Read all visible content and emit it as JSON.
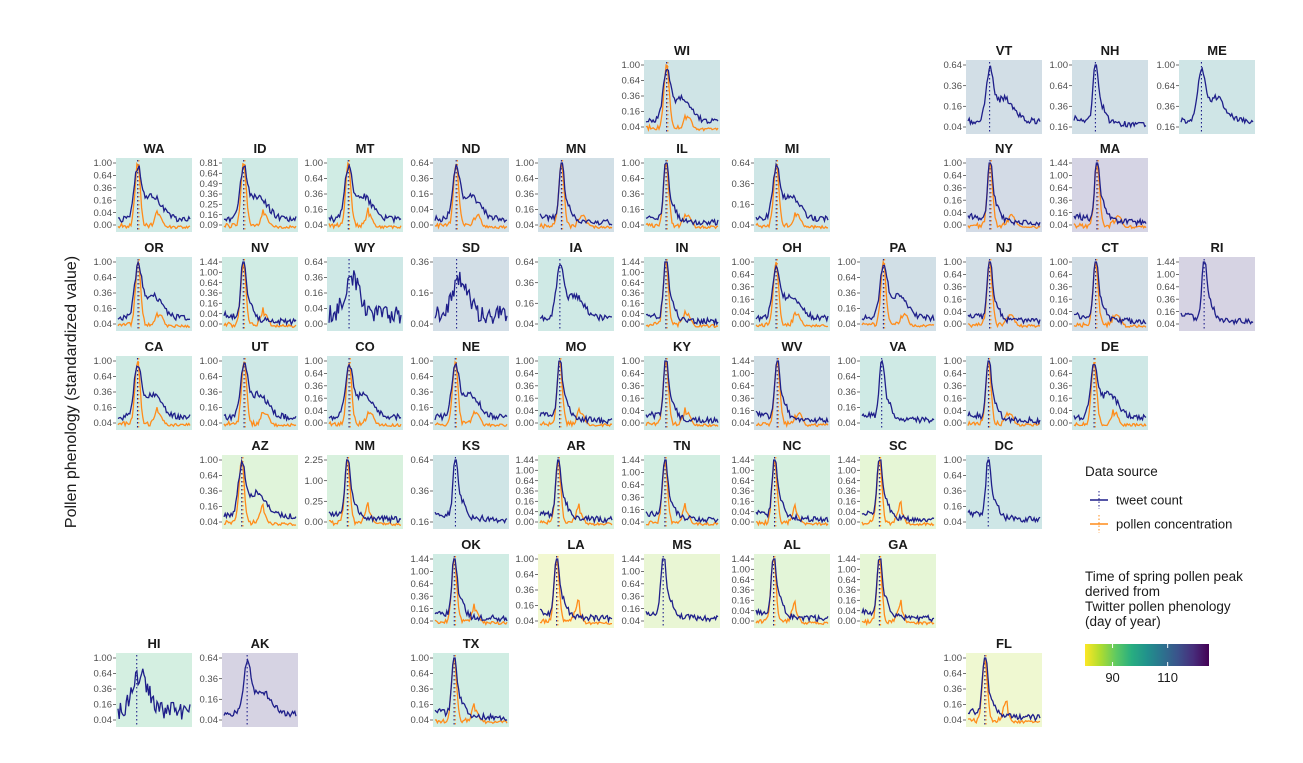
{
  "chart_data": {
    "type": "line",
    "ylabel": "Pollen phenology (standardized value)",
    "colors": {
      "tweet": "#1f1f8a",
      "pollen": "#ff8c1a"
    },
    "legend": {
      "title": "Data source",
      "items": [
        {
          "label": "tweet count",
          "color": "#1f1f8a"
        },
        {
          "label": "pollen concentration",
          "color": "#ff8c1a"
        }
      ]
    },
    "colorbar": {
      "title_lines": [
        "Time of spring pollen peak",
        "derived from",
        "Twitter pollen phenology",
        "(day of year)"
      ],
      "ticks": [
        90,
        110
      ],
      "range": [
        80,
        125
      ],
      "palette": [
        "#fde725",
        "#addc30",
        "#5ec962",
        "#28ae80",
        "#21918c",
        "#2c728e",
        "#3b528b",
        "#472d7b",
        "#440154"
      ]
    },
    "panels": [
      {
        "state": "WI",
        "col": 5,
        "row": 0,
        "ticks": [
          "1.00",
          "0.64",
          "0.36",
          "0.16",
          "0.04"
        ],
        "peak": 105,
        "pollen": true,
        "shape": "broad"
      },
      {
        "state": "VT",
        "col": 8,
        "row": 0,
        "ticks": [
          "0.64",
          "0.36",
          "0.16",
          "0.04"
        ],
        "peak": 110,
        "pollen": false,
        "shape": "broad"
      },
      {
        "state": "NH",
        "col": 9,
        "row": 0,
        "ticks": [
          "1.00",
          "0.64",
          "0.36",
          "0.16"
        ],
        "peak": 109,
        "pollen": false,
        "shape": "sharp"
      },
      {
        "state": "ME",
        "col": 10,
        "row": 0,
        "ticks": [
          "1.00",
          "0.64",
          "0.36",
          "0.16"
        ],
        "peak": 104,
        "pollen": false,
        "shape": "broad"
      },
      {
        "state": "WA",
        "col": 0,
        "row": 1,
        "ticks": [
          "1.00",
          "0.64",
          "0.36",
          "0.16",
          "0.04",
          "0.00"
        ],
        "peak": 100,
        "pollen": true,
        "shape": "broad"
      },
      {
        "state": "ID",
        "col": 1,
        "row": 1,
        "ticks": [
          "0.81",
          "0.64",
          "0.49",
          "0.36",
          "0.25",
          "0.16",
          "0.09"
        ],
        "peak": 100,
        "pollen": true,
        "shape": "broad"
      },
      {
        "state": "MT",
        "col": 2,
        "row": 1,
        "ticks": [
          "1.00",
          "0.64",
          "0.36",
          "0.16",
          "0.04"
        ],
        "peak": 98,
        "pollen": true,
        "shape": "broad"
      },
      {
        "state": "ND",
        "col": 3,
        "row": 1,
        "ticks": [
          "0.64",
          "0.36",
          "0.16",
          "0.04",
          "0.00"
        ],
        "peak": 108,
        "pollen": true,
        "shape": "broad"
      },
      {
        "state": "MN",
        "col": 4,
        "row": 1,
        "ticks": [
          "1.00",
          "0.64",
          "0.36",
          "0.16",
          "0.04"
        ],
        "peak": 109,
        "pollen": true,
        "shape": "sharp"
      },
      {
        "state": "IL",
        "col": 5,
        "row": 1,
        "ticks": [
          "1.00",
          "0.64",
          "0.36",
          "0.16",
          "0.04"
        ],
        "peak": 102,
        "pollen": true,
        "shape": "sharp"
      },
      {
        "state": "MI",
        "col": 6,
        "row": 1,
        "ticks": [
          "0.64",
          "0.36",
          "0.16",
          "0.04"
        ],
        "peak": 103,
        "pollen": true,
        "shape": "broad"
      },
      {
        "state": "NY",
        "col": 8,
        "row": 1,
        "ticks": [
          "1.00",
          "0.64",
          "0.36",
          "0.16",
          "0.04",
          "0.00"
        ],
        "peak": 112,
        "pollen": true,
        "shape": "sharp"
      },
      {
        "state": "MA",
        "col": 9,
        "row": 1,
        "ticks": [
          "1.44",
          "1.00",
          "0.64",
          "0.36",
          "0.16",
          "0.04"
        ],
        "peak": 117,
        "pollen": true,
        "shape": "sharp"
      },
      {
        "state": "OR",
        "col": 0,
        "row": 2,
        "ticks": [
          "1.00",
          "0.64",
          "0.36",
          "0.16",
          "0.04"
        ],
        "peak": 102,
        "pollen": true,
        "shape": "broad"
      },
      {
        "state": "NV",
        "col": 1,
        "row": 2,
        "ticks": [
          "1.44",
          "1.00",
          "0.64",
          "0.36",
          "0.16",
          "0.04",
          "0.00"
        ],
        "peak": 98,
        "pollen": true,
        "shape": "sharp"
      },
      {
        "state": "WY",
        "col": 2,
        "row": 2,
        "ticks": [
          "0.64",
          "0.36",
          "0.16",
          "0.04",
          "0.00"
        ],
        "peak": 102,
        "pollen": false,
        "shape": "noisy"
      },
      {
        "state": "SD",
        "col": 3,
        "row": 2,
        "ticks": [
          "0.36",
          "0.16",
          "0.04"
        ],
        "peak": 110,
        "pollen": false,
        "shape": "noisy"
      },
      {
        "state": "IA",
        "col": 4,
        "row": 2,
        "ticks": [
          "0.64",
          "0.36",
          "0.16",
          "0.04"
        ],
        "peak": 101,
        "pollen": false,
        "shape": "broad"
      },
      {
        "state": "IN",
        "col": 5,
        "row": 2,
        "ticks": [
          "1.44",
          "1.00",
          "0.64",
          "0.36",
          "0.16",
          "0.04",
          "0.00"
        ],
        "peak": 101,
        "pollen": true,
        "shape": "sharp"
      },
      {
        "state": "OH",
        "col": 6,
        "row": 2,
        "ticks": [
          "1.00",
          "0.64",
          "0.36",
          "0.16",
          "0.04",
          "0.00"
        ],
        "peak": 102,
        "pollen": true,
        "shape": "broad"
      },
      {
        "state": "PA",
        "col": 7,
        "row": 2,
        "ticks": [
          "1.00",
          "0.64",
          "0.36",
          "0.16",
          "0.04"
        ],
        "peak": 109,
        "pollen": true,
        "shape": "broad"
      },
      {
        "state": "NJ",
        "col": 8,
        "row": 2,
        "ticks": [
          "1.00",
          "0.64",
          "0.36",
          "0.16",
          "0.04",
          "0.00"
        ],
        "peak": 110,
        "pollen": true,
        "shape": "sharp"
      },
      {
        "state": "CT",
        "col": 9,
        "row": 2,
        "ticks": [
          "1.00",
          "0.64",
          "0.36",
          "0.16",
          "0.04",
          "0.00"
        ],
        "peak": 110,
        "pollen": true,
        "shape": "sharp"
      },
      {
        "state": "RI",
        "col": 10,
        "row": 2,
        "ticks": [
          "1.44",
          "1.00",
          "0.64",
          "0.36",
          "0.16",
          "0.04"
        ],
        "peak": 118,
        "pollen": false,
        "shape": "sharp"
      },
      {
        "state": "CA",
        "col": 0,
        "row": 3,
        "ticks": [
          "1.00",
          "0.64",
          "0.36",
          "0.16",
          "0.04"
        ],
        "peak": 99,
        "pollen": true,
        "shape": "broad"
      },
      {
        "state": "UT",
        "col": 1,
        "row": 3,
        "ticks": [
          "1.00",
          "0.64",
          "0.36",
          "0.16",
          "0.04"
        ],
        "peak": 102,
        "pollen": true,
        "shape": "broad"
      },
      {
        "state": "CO",
        "col": 2,
        "row": 3,
        "ticks": [
          "1.00",
          "0.64",
          "0.36",
          "0.16",
          "0.04",
          "0.00"
        ],
        "peak": 102,
        "pollen": true,
        "shape": "broad"
      },
      {
        "state": "NE",
        "col": 3,
        "row": 3,
        "ticks": [
          "1.00",
          "0.64",
          "0.36",
          "0.16",
          "0.04"
        ],
        "peak": 103,
        "pollen": true,
        "shape": "broad"
      },
      {
        "state": "MO",
        "col": 4,
        "row": 3,
        "ticks": [
          "1.00",
          "0.64",
          "0.36",
          "0.16",
          "0.04",
          "0.00"
        ],
        "peak": 100,
        "pollen": true,
        "shape": "sharp"
      },
      {
        "state": "KY",
        "col": 5,
        "row": 3,
        "ticks": [
          "1.00",
          "0.64",
          "0.36",
          "0.16",
          "0.04",
          "0.00"
        ],
        "peak": 101,
        "pollen": true,
        "shape": "sharp"
      },
      {
        "state": "WV",
        "col": 6,
        "row": 3,
        "ticks": [
          "1.44",
          "1.00",
          "0.64",
          "0.36",
          "0.16",
          "0.04"
        ],
        "peak": 108,
        "pollen": true,
        "shape": "sharp"
      },
      {
        "state": "VA",
        "col": 7,
        "row": 3,
        "ticks": [
          "1.00",
          "0.64",
          "0.36",
          "0.16",
          "0.04"
        ],
        "peak": 100,
        "pollen": false,
        "shape": "sharp"
      },
      {
        "state": "MD",
        "col": 8,
        "row": 3,
        "ticks": [
          "1.00",
          "0.64",
          "0.36",
          "0.16",
          "0.04",
          "0.00"
        ],
        "peak": 104,
        "pollen": true,
        "shape": "sharp"
      },
      {
        "state": "DE",
        "col": 9,
        "row": 3,
        "ticks": [
          "1.00",
          "0.64",
          "0.36",
          "0.16",
          "0.04",
          "0.00"
        ],
        "peak": 102,
        "pollen": true,
        "shape": "broad"
      },
      {
        "state": "AZ",
        "col": 1,
        "row": 4,
        "ticks": [
          "1.00",
          "0.64",
          "0.36",
          "0.16",
          "0.04"
        ],
        "peak": 90,
        "pollen": true,
        "shape": "broad"
      },
      {
        "state": "NM",
        "col": 2,
        "row": 4,
        "ticks": [
          "2.25",
          "1.00",
          "0.25",
          "0.00"
        ],
        "peak": 93,
        "pollen": true,
        "shape": "sharp"
      },
      {
        "state": "KS",
        "col": 3,
        "row": 4,
        "ticks": [
          "0.64",
          "0.36",
          "0.16"
        ],
        "peak": 104,
        "pollen": false,
        "shape": "sharp"
      },
      {
        "state": "AR",
        "col": 4,
        "row": 4,
        "ticks": [
          "1.44",
          "1.00",
          "0.64",
          "0.36",
          "0.16",
          "0.04",
          "0.00"
        ],
        "peak": 92,
        "pollen": true,
        "shape": "sharp"
      },
      {
        "state": "TN",
        "col": 5,
        "row": 4,
        "ticks": [
          "1.44",
          "1.00",
          "0.64",
          "0.36",
          "0.16",
          "0.04"
        ],
        "peak": 96,
        "pollen": true,
        "shape": "sharp"
      },
      {
        "state": "NC",
        "col": 6,
        "row": 4,
        "ticks": [
          "1.44",
          "1.00",
          "0.64",
          "0.36",
          "0.16",
          "0.04",
          "0.00"
        ],
        "peak": 94,
        "pollen": true,
        "shape": "sharp"
      },
      {
        "state": "SC",
        "col": 7,
        "row": 4,
        "ticks": [
          "1.44",
          "1.00",
          "0.64",
          "0.36",
          "0.16",
          "0.04",
          "0.00"
        ],
        "peak": 88,
        "pollen": true,
        "shape": "sharp"
      },
      {
        "state": "DC",
        "col": 8,
        "row": 4,
        "ticks": [
          "1.00",
          "0.64",
          "0.36",
          "0.16",
          "0.04"
        ],
        "peak": 103,
        "pollen": false,
        "shape": "sharp"
      },
      {
        "state": "OK",
        "col": 3,
        "row": 5,
        "ticks": [
          "1.44",
          "1.00",
          "0.64",
          "0.36",
          "0.16",
          "0.04"
        ],
        "peak": 98,
        "pollen": true,
        "shape": "sharp"
      },
      {
        "state": "LA",
        "col": 4,
        "row": 5,
        "ticks": [
          "1.00",
          "0.64",
          "0.36",
          "0.16",
          "0.04"
        ],
        "peak": 84,
        "pollen": true,
        "shape": "sharp"
      },
      {
        "state": "MS",
        "col": 5,
        "row": 5,
        "ticks": [
          "1.44",
          "1.00",
          "0.64",
          "0.36",
          "0.16",
          "0.04"
        ],
        "peak": 87,
        "pollen": false,
        "shape": "sharp"
      },
      {
        "state": "AL",
        "col": 6,
        "row": 5,
        "ticks": [
          "1.44",
          "1.00",
          "0.64",
          "0.36",
          "0.16",
          "0.04",
          "0.00"
        ],
        "peak": 89,
        "pollen": true,
        "shape": "sharp"
      },
      {
        "state": "GA",
        "col": 7,
        "row": 5,
        "ticks": [
          "1.44",
          "1.00",
          "0.64",
          "0.36",
          "0.16",
          "0.04",
          "0.00"
        ],
        "peak": 88,
        "pollen": true,
        "shape": "sharp"
      },
      {
        "state": "HI",
        "col": 0,
        "row": 6,
        "ticks": [
          "1.00",
          "0.64",
          "0.36",
          "0.16",
          "0.04"
        ],
        "peak": 95,
        "pollen": false,
        "shape": "noisy"
      },
      {
        "state": "AK",
        "col": 1,
        "row": 6,
        "ticks": [
          "0.64",
          "0.36",
          "0.16",
          "0.04"
        ],
        "peak": 118,
        "pollen": false,
        "shape": "broad"
      },
      {
        "state": "TX",
        "col": 3,
        "row": 6,
        "ticks": [
          "1.00",
          "0.64",
          "0.36",
          "0.16",
          "0.04"
        ],
        "peak": 97,
        "pollen": true,
        "shape": "sharp"
      },
      {
        "state": "FL",
        "col": 8,
        "row": 6,
        "ticks": [
          "1.00",
          "0.64",
          "0.36",
          "0.16",
          "0.04"
        ],
        "peak": 85,
        "pollen": true,
        "shape": "sharp"
      }
    ]
  }
}
